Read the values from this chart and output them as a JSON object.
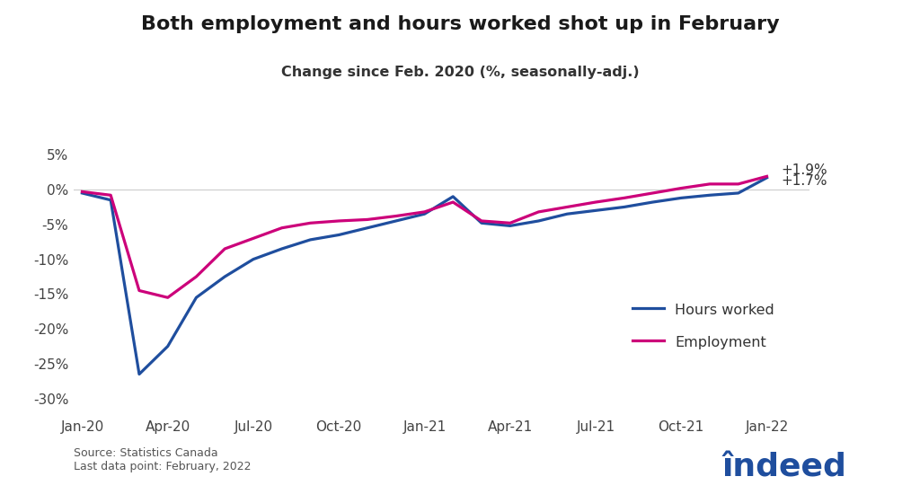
{
  "title": "Both employment and hours worked shot up in February",
  "subtitle": "Change since Feb. 2020 (%, seasonally-adj.)",
  "source_text": "Source: Statistics Canada\nLast data point: February, 2022",
  "title_color": "#1a1a1a",
  "subtitle_color": "#333333",
  "background_color": "#ffffff",
  "hours_color": "#1f4e9e",
  "employment_color": "#cc007a",
  "line_width": 2.3,
  "ylim": [
    -32,
    7
  ],
  "yticks": [
    5,
    0,
    -5,
    -10,
    -15,
    -20,
    -25,
    -30
  ],
  "xtick_labels": [
    "Jan-20",
    "Apr-20",
    "Jul-20",
    "Oct-20",
    "Jan-21",
    "Apr-21",
    "Jul-21",
    "Oct-21",
    "Jan-22"
  ],
  "end_label_hours": "+1.7%",
  "end_label_employment": "+1.9%",
  "legend_hours": "Hours worked",
  "legend_employment": "Employment",
  "dates": [
    0,
    1,
    2,
    3,
    4,
    5,
    6,
    7,
    8,
    9,
    10,
    11,
    12,
    13,
    14,
    15,
    16,
    17,
    18,
    19,
    20,
    21,
    22,
    23,
    24
  ],
  "hours_worked": [
    -0.5,
    -1.5,
    -26.5,
    -22.5,
    -15.5,
    -12.5,
    -10.0,
    -8.5,
    -7.2,
    -6.5,
    -5.5,
    -4.5,
    -3.5,
    -1.0,
    -4.8,
    -5.2,
    -4.5,
    -3.5,
    -3.0,
    -2.5,
    -1.8,
    -1.2,
    -0.8,
    -0.5,
    1.7
  ],
  "employment": [
    -0.3,
    -0.8,
    -14.5,
    -15.5,
    -12.5,
    -8.5,
    -7.0,
    -5.5,
    -4.8,
    -4.5,
    -4.3,
    -3.8,
    -3.2,
    -1.8,
    -4.5,
    -4.8,
    -3.2,
    -2.5,
    -1.8,
    -1.2,
    -0.5,
    0.2,
    0.8,
    0.8,
    1.9
  ],
  "x_tick_positions": [
    0,
    3,
    6,
    9,
    12,
    15,
    18,
    21,
    24
  ]
}
